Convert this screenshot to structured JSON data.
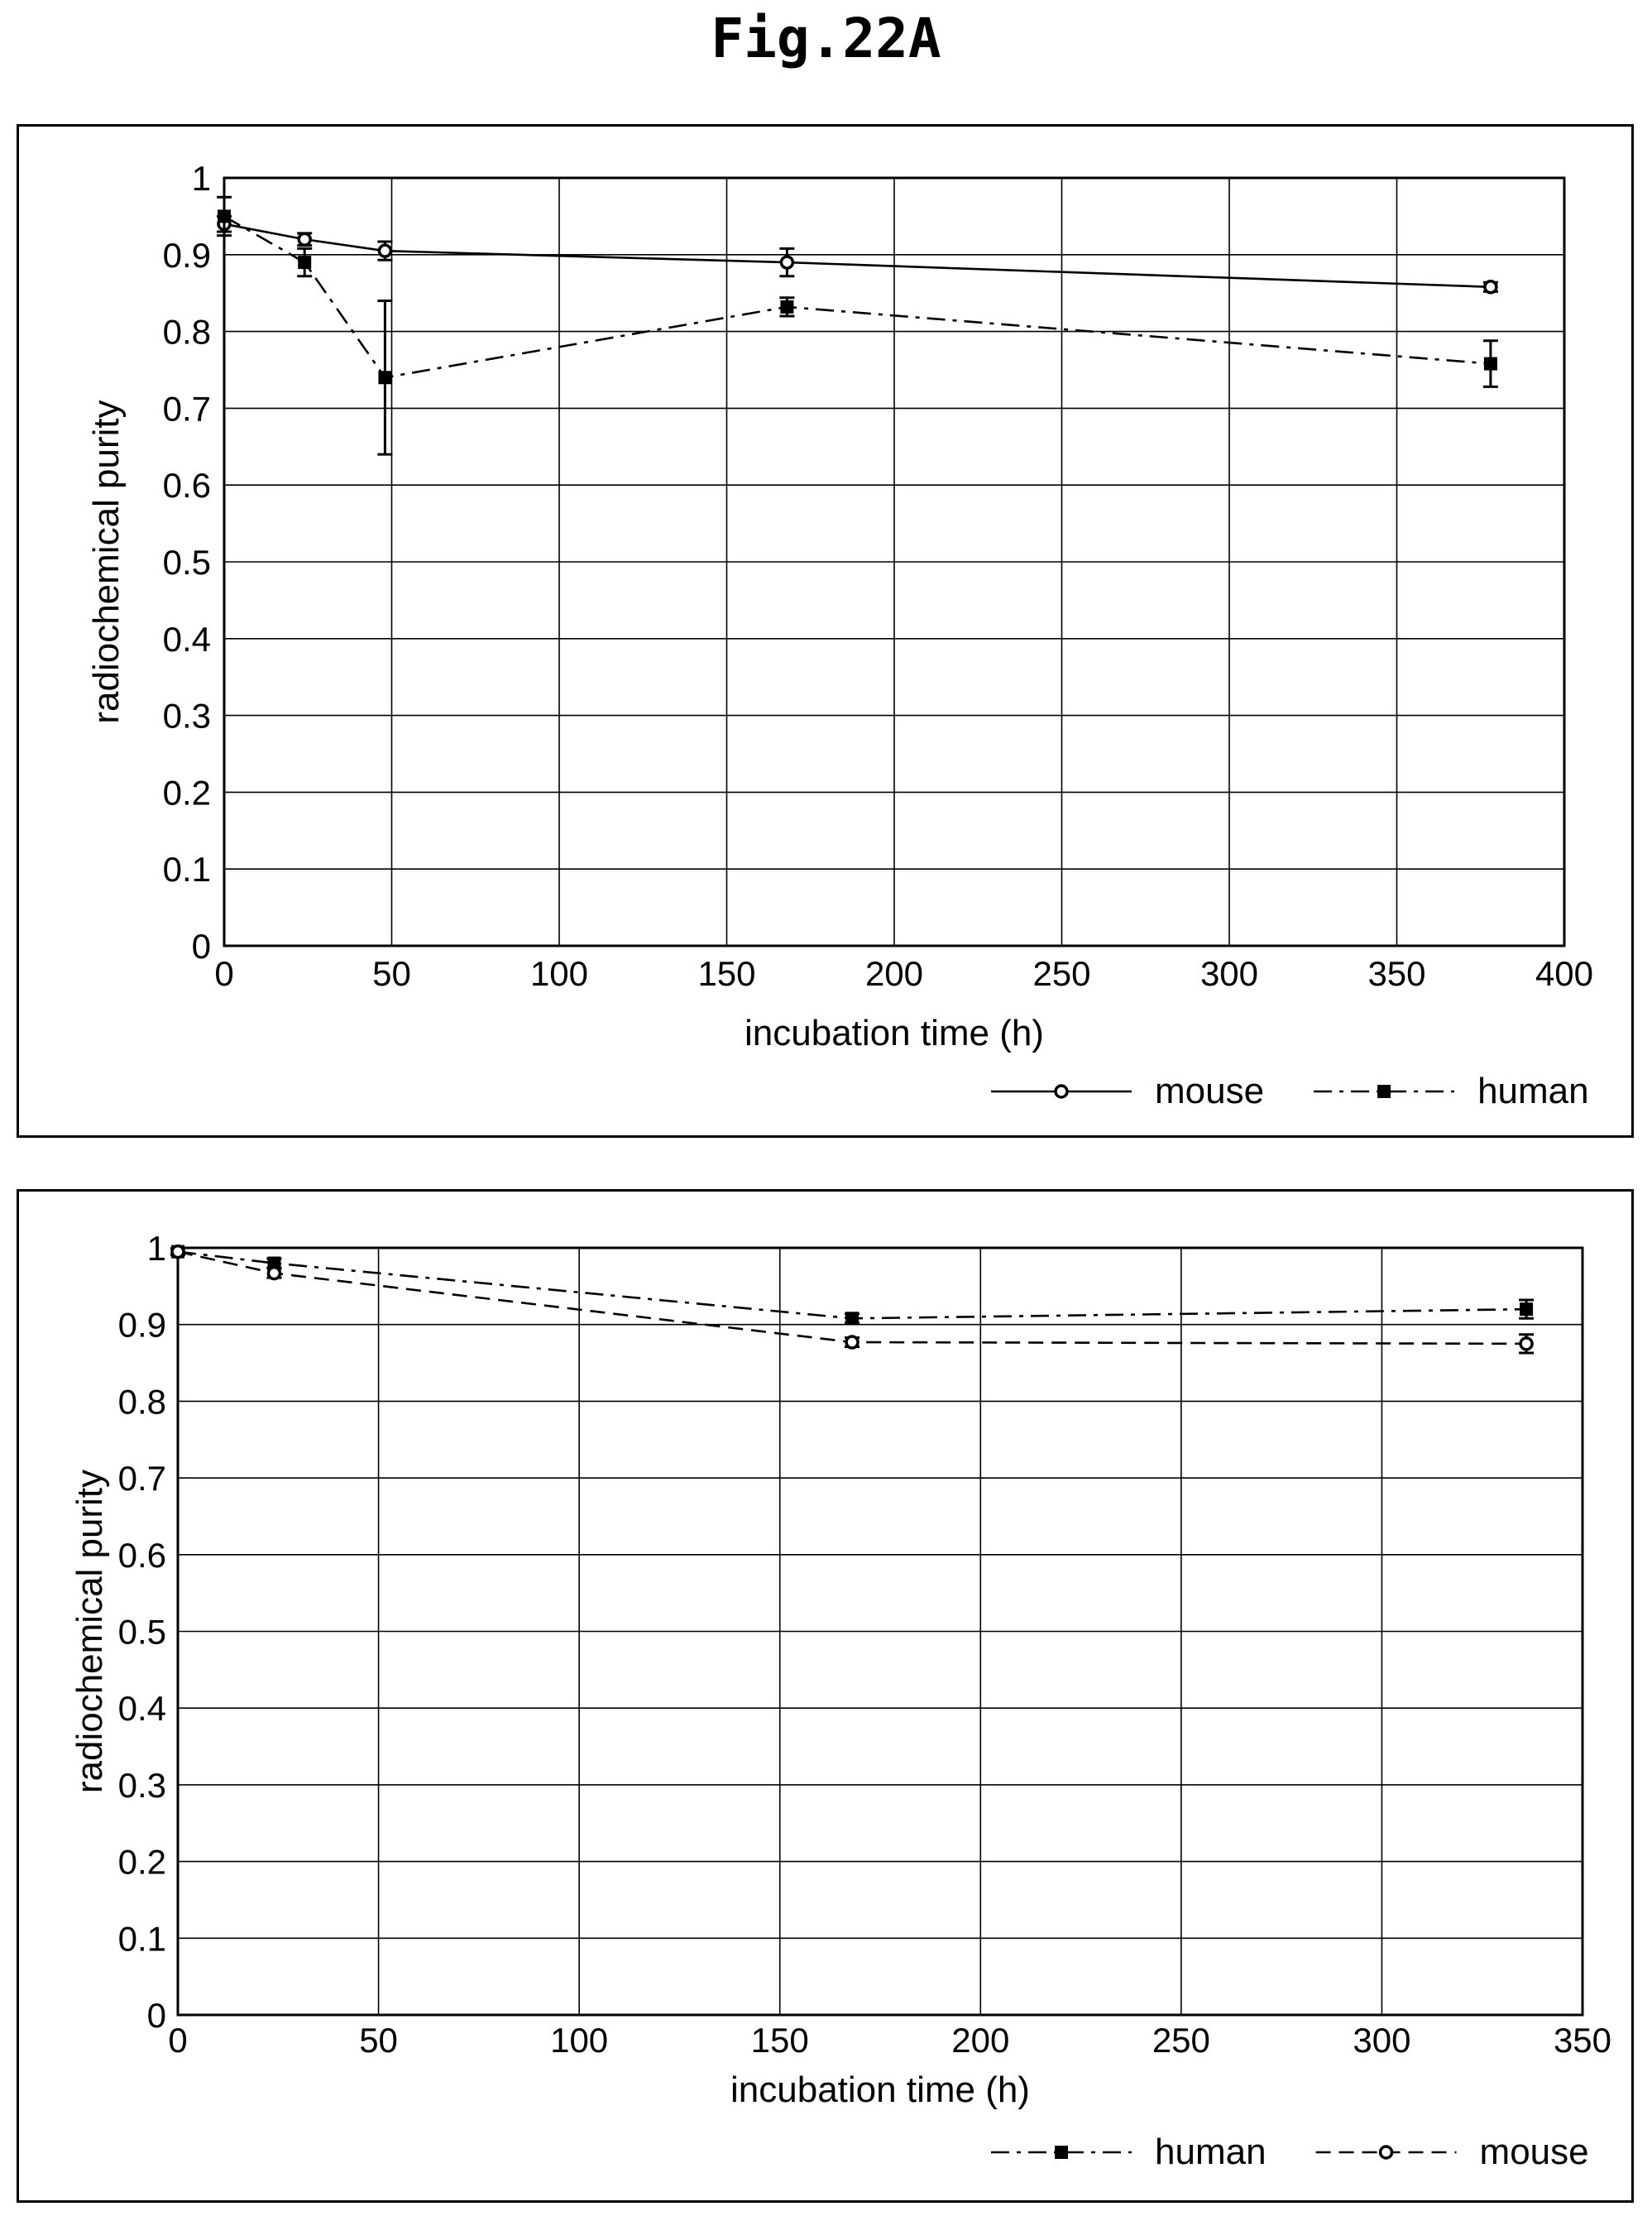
{
  "figure": {
    "title": "Fig.22A"
  },
  "colors": {
    "ink": "#000000",
    "background": "#ffffff",
    "grid": "#000000"
  },
  "chart_data": [
    {
      "type": "line",
      "title": "",
      "xlabel": "incubation time (h)",
      "ylabel": "radiochemical purity",
      "xlim": [
        0,
        400
      ],
      "ylim": [
        0,
        1
      ],
      "xticks": [
        0,
        50,
        100,
        150,
        200,
        250,
        300,
        350,
        400
      ],
      "yticks": [
        0,
        0.1,
        0.2,
        0.3,
        0.4,
        0.5,
        0.6,
        0.7,
        0.8,
        0.9,
        1
      ],
      "ytick_labels": [
        "0",
        "0.1",
        "0.2",
        "0.3",
        "0.4",
        "0.5",
        "0.6",
        "0.7",
        "0.8",
        "0.9",
        "1"
      ],
      "grid": true,
      "legend": "bottom-right",
      "series": [
        {
          "name": "mouse",
          "line_style": "solid",
          "marker": "circle",
          "x": [
            0,
            24,
            48,
            168,
            378
          ],
          "y": [
            0.94,
            0.92,
            0.905,
            0.89,
            0.858
          ],
          "err": [
            0.01,
            0.008,
            0.012,
            0.018,
            0.006
          ]
        },
        {
          "name": "human",
          "line_style": "dashdot",
          "marker": "square",
          "x": [
            0,
            24,
            48,
            168,
            378
          ],
          "y": [
            0.95,
            0.89,
            0.74,
            0.832,
            0.758
          ],
          "err": [
            0.025,
            0.018,
            0.1,
            0.012,
            0.03
          ]
        }
      ]
    },
    {
      "type": "line",
      "title": "",
      "xlabel": "incubation time (h)",
      "ylabel": "radiochemical purity",
      "xlim": [
        0,
        350
      ],
      "ylim": [
        0,
        1
      ],
      "xticks": [
        0,
        50,
        100,
        150,
        200,
        250,
        300,
        350
      ],
      "yticks": [
        0,
        0.1,
        0.2,
        0.3,
        0.4,
        0.5,
        0.6,
        0.7,
        0.8,
        0.9,
        1
      ],
      "ytick_labels": [
        "0",
        "0.1",
        "0.2",
        "0.3",
        "0.4",
        "0.5",
        "0.6",
        "0.7",
        "0.8",
        "0.9",
        "1"
      ],
      "grid": true,
      "legend": "bottom-right",
      "series": [
        {
          "name": "human",
          "line_style": "dashdot",
          "marker": "square",
          "x": [
            0,
            24,
            168,
            336
          ],
          "y": [
            0.995,
            0.98,
            0.908,
            0.92
          ],
          "err": [
            0.004,
            0.006,
            0.006,
            0.012
          ]
        },
        {
          "name": "mouse",
          "line_style": "dashed",
          "marker": "circle",
          "x": [
            0,
            24,
            168,
            336
          ],
          "y": [
            0.995,
            0.967,
            0.877,
            0.875
          ],
          "err": [
            0.004,
            0.006,
            0.006,
            0.012
          ]
        }
      ]
    }
  ]
}
